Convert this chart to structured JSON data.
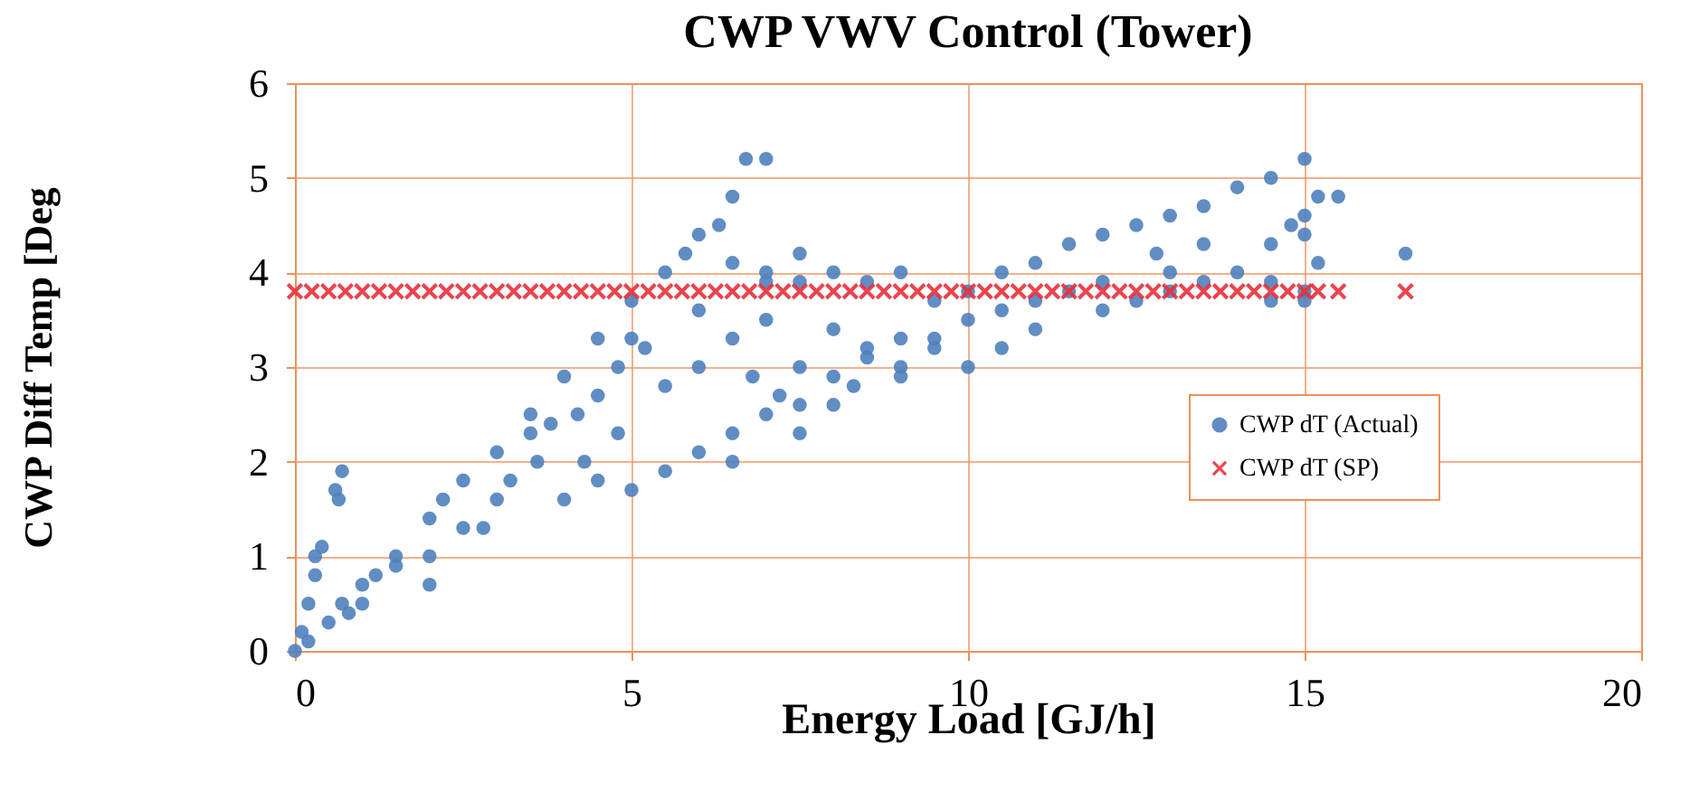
{
  "chart_data": {
    "type": "scatter",
    "title": "CWP VWV Control (Tower)",
    "xlabel": "Energy Load [GJ/h]",
    "ylabel": "CWP Diff Temp [Deg",
    "xlim": [
      0,
      20
    ],
    "xticks": [
      0,
      5,
      10,
      15,
      20
    ],
    "ylim": [
      0,
      6
    ],
    "yticks": [
      0,
      1,
      2,
      3,
      4,
      5,
      6
    ],
    "grid": true,
    "legend": "right",
    "series": [
      {
        "name": "CWP dT (Actual)",
        "color": "#4f81bd",
        "marker": "circle",
        "x": [
          0,
          0.1,
          0.2,
          0.3,
          0.3,
          0.4,
          0.2,
          0.5,
          0.7,
          0.6,
          0.7,
          0.65,
          1,
          1.5,
          2,
          2.5,
          3,
          3.5,
          4,
          4.5,
          5,
          5.5,
          6,
          6.5,
          6.7,
          7,
          6.3,
          5.8,
          6.5,
          7,
          7,
          6.5,
          6,
          5.5,
          5.2,
          4.8,
          4.2,
          3.6,
          3,
          2.5,
          2,
          1.5,
          1,
          1.2,
          0.8,
          2.8,
          3.2,
          3.8,
          4.3,
          4,
          4.5,
          5,
          5.5,
          6,
          6.5,
          7,
          7.5,
          8,
          8.5,
          9,
          9.5,
          10,
          10.5,
          11,
          11.5,
          12,
          12.5,
          13,
          13.5,
          14,
          14.5,
          15,
          15.2,
          7.5,
          8,
          8.5,
          9,
          9.5,
          10,
          10.5,
          11,
          11.5,
          12,
          12.5,
          13,
          13.5,
          14,
          14.5,
          15,
          15.2,
          15.5,
          14.8,
          14.5,
          13.5,
          12.8,
          15,
          15,
          16.5,
          7,
          7.5,
          8,
          8.5,
          9,
          9.5,
          7.5,
          6,
          6.8,
          7.2,
          8,
          9,
          10,
          10.5,
          11,
          12,
          13,
          8.3,
          7.5,
          6.5,
          5,
          4.5,
          2.2,
          3.5,
          4.8,
          2,
          14.5,
          15
        ],
        "values": [
          0,
          0.2,
          0.5,
          0.8,
          1.0,
          1.1,
          0.1,
          0.3,
          0.5,
          1.7,
          1.9,
          1.6,
          0.7,
          1.0,
          1.4,
          1.8,
          2.1,
          2.5,
          2.9,
          3.3,
          3.7,
          4.0,
          4.4,
          4.8,
          5.2,
          5.2,
          4.5,
          4.2,
          4.1,
          4.0,
          3.5,
          3.3,
          3.0,
          2.8,
          3.2,
          3.0,
          2.5,
          2.0,
          1.6,
          1.3,
          0.7,
          0.9,
          0.5,
          0.8,
          0.4,
          1.3,
          1.8,
          2.4,
          2.0,
          1.6,
          1.8,
          1.7,
          1.9,
          2.1,
          2.3,
          2.5,
          2.6,
          2.9,
          3.1,
          3.3,
          3.3,
          3.5,
          3.6,
          3.7,
          3.8,
          3.9,
          3.7,
          4.0,
          3.9,
          4.0,
          3.9,
          3.8,
          4.1,
          3.0,
          3.4,
          3.2,
          3.0,
          3.2,
          3.8,
          4.0,
          4.1,
          4.3,
          4.4,
          4.5,
          4.6,
          4.7,
          4.9,
          5.0,
          5.2,
          4.8,
          4.8,
          4.5,
          4.3,
          4.3,
          4.2,
          4.6,
          4.4,
          4.2,
          3.9,
          3.9,
          4.0,
          3.9,
          4.0,
          3.7,
          4.2,
          3.6,
          2.9,
          2.7,
          2.6,
          2.9,
          3.0,
          3.2,
          3.4,
          3.6,
          3.8,
          2.8,
          2.3,
          2.0,
          3.3,
          2.7,
          1.6,
          2.3,
          2.3,
          1.0,
          3.7,
          3.7
        ]
      },
      {
        "name": "CWP dT (SP)",
        "color": "#e8303a",
        "marker": "cross",
        "x": [
          0,
          0.25,
          0.5,
          0.75,
          1,
          1.25,
          1.5,
          1.75,
          2,
          2.25,
          2.5,
          2.75,
          3,
          3.25,
          3.5,
          3.75,
          4,
          4.25,
          4.5,
          4.75,
          5,
          5.25,
          5.5,
          5.75,
          6,
          6.25,
          6.5,
          6.75,
          7,
          7.25,
          7.5,
          7.75,
          8,
          8.25,
          8.5,
          8.75,
          9,
          9.25,
          9.5,
          9.75,
          10,
          10.25,
          10.5,
          10.75,
          11,
          11.25,
          11.5,
          11.75,
          12,
          12.25,
          12.5,
          12.75,
          13,
          13.25,
          13.5,
          13.75,
          14,
          14.25,
          14.5,
          14.75,
          15,
          15.2,
          15.5,
          16.5
        ],
        "values": [
          3.8,
          3.8,
          3.8,
          3.8,
          3.8,
          3.8,
          3.8,
          3.8,
          3.8,
          3.8,
          3.8,
          3.8,
          3.8,
          3.8,
          3.8,
          3.8,
          3.8,
          3.8,
          3.8,
          3.8,
          3.8,
          3.8,
          3.8,
          3.8,
          3.8,
          3.8,
          3.8,
          3.8,
          3.8,
          3.8,
          3.8,
          3.8,
          3.8,
          3.8,
          3.8,
          3.8,
          3.8,
          3.8,
          3.8,
          3.8,
          3.8,
          3.8,
          3.8,
          3.8,
          3.8,
          3.8,
          3.8,
          3.8,
          3.8,
          3.8,
          3.8,
          3.8,
          3.8,
          3.8,
          3.8,
          3.8,
          3.8,
          3.8,
          3.8,
          3.8,
          3.8,
          3.8,
          3.8,
          3.8
        ]
      }
    ]
  }
}
